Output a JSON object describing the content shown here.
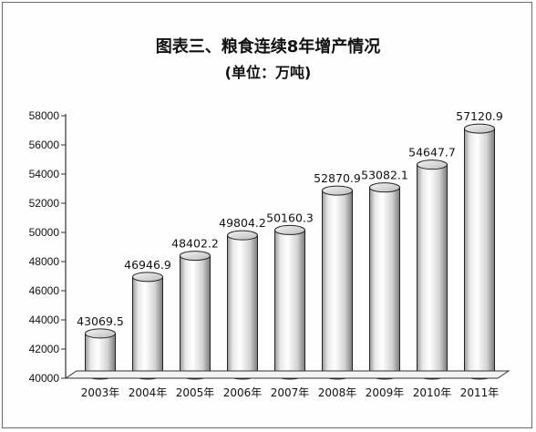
{
  "chart_data": {
    "type": "bar",
    "title": "图表三、粮食连续8年增产情况",
    "subtitle": "(单位：万吨)",
    "categories": [
      "2003年",
      "2004年",
      "2005年",
      "2006年",
      "2007年",
      "2008年",
      "2009年",
      "2010年",
      "2011年"
    ],
    "values": [
      43069.5,
      46946.9,
      48402.2,
      49804.2,
      50160.3,
      52870.9,
      53082.1,
      54647.7,
      57120.9
    ],
    "data_labels": [
      "43069.5",
      "46946.9",
      "48402.2",
      "49804.2",
      "50160.3",
      "52870.9",
      "53082.1",
      "54647.7",
      "57120.9"
    ],
    "yticks": [
      "40000",
      "42000",
      "44000",
      "46000",
      "48000",
      "50000",
      "52000",
      "54000",
      "56000",
      "58000"
    ],
    "ylim": [
      40000,
      58000
    ],
    "bar_style": "3d-cylinder",
    "colors": {
      "bar_light": "#ffffff",
      "bar_mid": "#e4e4e4",
      "bar_dark": "#8a8a8a",
      "edge": "#222222",
      "axis": "#333333"
    },
    "grid": false,
    "legend": "none"
  }
}
